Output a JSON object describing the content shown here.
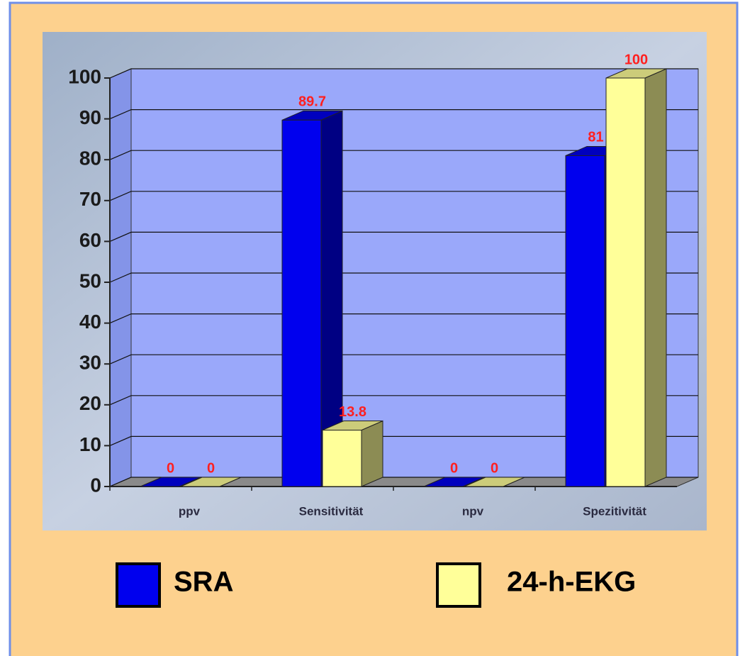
{
  "chart_data": {
    "type": "bar3d",
    "categories": [
      "ppv",
      "Sensitivität",
      "npv",
      "Spezitivität"
    ],
    "series": [
      {
        "name": "SRA",
        "color": "#0000ee",
        "values": [
          0,
          89.7,
          0,
          81
        ]
      },
      {
        "name": "24-h-EKG",
        "color": "#ffff99",
        "values": [
          0,
          13.8,
          0,
          100
        ]
      }
    ],
    "ylim": [
      0,
      100
    ],
    "yticks": [
      0,
      10,
      20,
      30,
      40,
      50,
      60,
      70,
      80,
      90,
      100
    ],
    "grid": true
  }
}
